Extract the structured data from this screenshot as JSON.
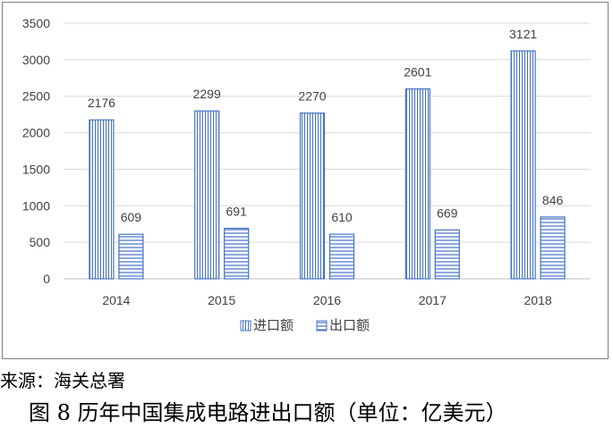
{
  "chart_data": {
    "type": "bar",
    "categories": [
      "2014",
      "2015",
      "2016",
      "2017",
      "2018"
    ],
    "series": [
      {
        "name": "进口额",
        "values": [
          2176,
          2299,
          2270,
          2601,
          3121
        ],
        "pattern": "vertical-lines"
      },
      {
        "name": "出口额",
        "values": [
          609,
          691,
          610,
          669,
          846
        ],
        "pattern": "horizontal-lines"
      }
    ],
    "ylim": [
      0,
      3500
    ],
    "yticks": [
      0,
      500,
      1000,
      1500,
      2000,
      2500,
      3000,
      3500
    ],
    "grid": true,
    "legend": "bottom",
    "colors": {
      "bar_stroke": "#4472c4",
      "grid": "#d9d9d9",
      "text": "#404040",
      "axis": "#bfbfbf"
    }
  },
  "caption": {
    "source": "来源：海关总署",
    "title": "图 8  历年中国集成电路进出口额（单位：亿美元）"
  }
}
